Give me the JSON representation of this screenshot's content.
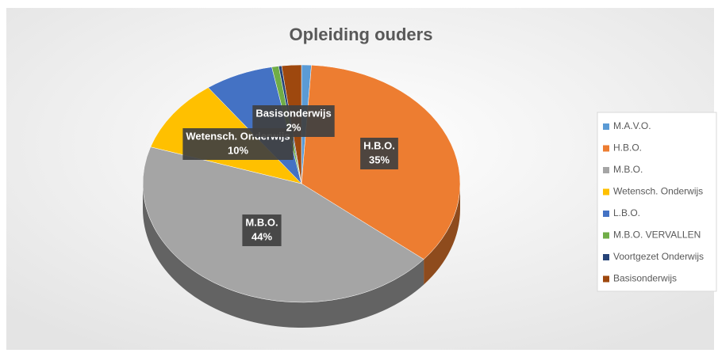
{
  "chart_data": {
    "type": "pie",
    "title": "Opleiding ouders",
    "categories": [
      "M.A.V.O.",
      "H.B.O.",
      "M.B.O.",
      "Wetensch. Onderwijs",
      "L.B.O.",
      "M.B.O. VERVALLEN",
      "Voortgezet Onderwijs",
      "Basisonderwijs"
    ],
    "values": [
      1,
      35,
      44,
      10,
      7,
      0.7,
      0.3,
      2
    ],
    "value_labels": [
      null,
      "35%",
      "44%",
      "10%",
      null,
      null,
      null,
      "2%"
    ],
    "colors": [
      "#5b9bd5",
      "#ed7d31",
      "#a5a5a5",
      "#ffc000",
      "#4472c4",
      "#70ad47",
      "#264478",
      "#9e480e"
    ],
    "legend": "right"
  }
}
